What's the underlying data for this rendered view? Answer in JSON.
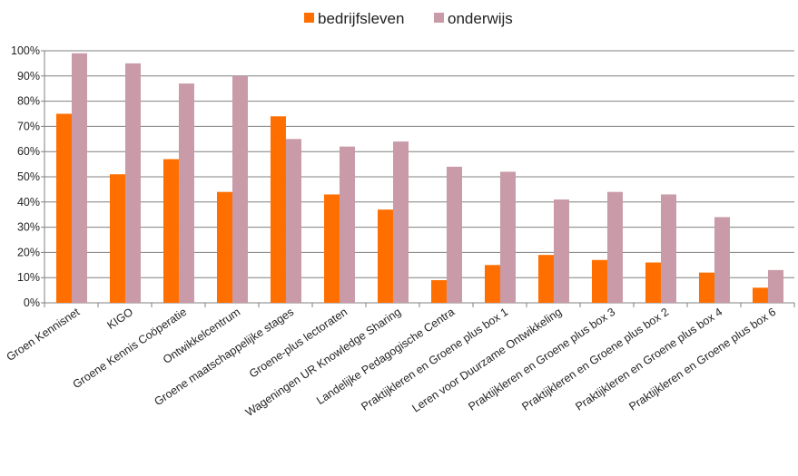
{
  "chart_data": {
    "type": "bar",
    "categories": [
      "Groen Kennisnet",
      "KIGO",
      "Groene Kennis Coöperatie",
      "Ontwikkelcentrum",
      "Groene maatschappelijke stages",
      "Groene-plus lectoraten",
      "Wageningen UR Knowledge Sharing",
      "Landelijke Pedagogische Centra",
      "Praktijkleren en Groene plus box 1",
      "Leren voor Duurzame Ontwikkeling",
      "Praktijkleren en Groene plus box 3",
      "Praktijkleren en Groene plus box 2",
      "Praktijkleren en Groene plus box 4",
      "Praktijkleren en Groene plus box 6"
    ],
    "series": [
      {
        "name": "bedrijfsleven",
        "color": "#ff6f00",
        "values": [
          75,
          51,
          57,
          44,
          74,
          43,
          37,
          9,
          15,
          19,
          17,
          16,
          12,
          6
        ]
      },
      {
        "name": "onderwijs",
        "color": "#c99aa8",
        "values": [
          99,
          95,
          87,
          90,
          65,
          62,
          64,
          54,
          52,
          41,
          44,
          43,
          34,
          13
        ]
      }
    ],
    "y_ticks": [
      "0%",
      "10%",
      "20%",
      "30%",
      "40%",
      "50%",
      "60%",
      "70%",
      "80%",
      "90%",
      "100%"
    ],
    "ylim": [
      0,
      100
    ],
    "title": "",
    "xlabel": "",
    "ylabel": "",
    "legend_position": "top-center",
    "grid": true,
    "gridline_color": "#808080"
  }
}
